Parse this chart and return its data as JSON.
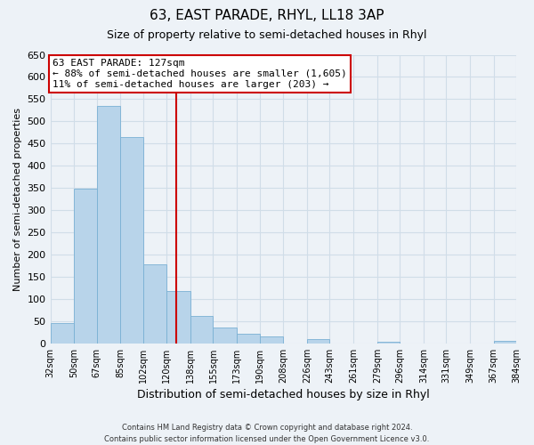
{
  "title": "63, EAST PARADE, RHYL, LL18 3AP",
  "subtitle": "Size of property relative to semi-detached houses in Rhyl",
  "xlabel": "Distribution of semi-detached houses by size in Rhyl",
  "ylabel": "Number of semi-detached properties",
  "bin_labels": [
    "32sqm",
    "50sqm",
    "67sqm",
    "85sqm",
    "102sqm",
    "120sqm",
    "138sqm",
    "155sqm",
    "173sqm",
    "190sqm",
    "208sqm",
    "226sqm",
    "243sqm",
    "261sqm",
    "279sqm",
    "296sqm",
    "314sqm",
    "331sqm",
    "349sqm",
    "367sqm",
    "384sqm"
  ],
  "bin_edges": [
    32,
    50,
    67,
    85,
    102,
    120,
    138,
    155,
    173,
    190,
    208,
    226,
    243,
    261,
    279,
    296,
    314,
    331,
    349,
    367,
    384
  ],
  "bar_heights": [
    46,
    348,
    535,
    465,
    178,
    118,
    62,
    35,
    22,
    15,
    0,
    10,
    0,
    0,
    4,
    0,
    0,
    0,
    0,
    6
  ],
  "bar_color": "#b8d4ea",
  "bar_edge_color": "#7ab0d4",
  "property_value": 127,
  "property_line_color": "#cc0000",
  "annotation_line1": "63 EAST PARADE: 127sqm",
  "annotation_line2": "← 88% of semi-detached houses are smaller (1,605)",
  "annotation_line3": "11% of semi-detached houses are larger (203) →",
  "annotation_box_color": "#ffffff",
  "annotation_box_edge": "#cc0000",
  "ylim": [
    0,
    650
  ],
  "yticks": [
    0,
    50,
    100,
    150,
    200,
    250,
    300,
    350,
    400,
    450,
    500,
    550,
    600,
    650
  ],
  "footer_line1": "Contains HM Land Registry data © Crown copyright and database right 2024.",
  "footer_line2": "Contains public sector information licensed under the Open Government Licence v3.0.",
  "grid_color": "#d0dde8",
  "background_color": "#edf2f7"
}
